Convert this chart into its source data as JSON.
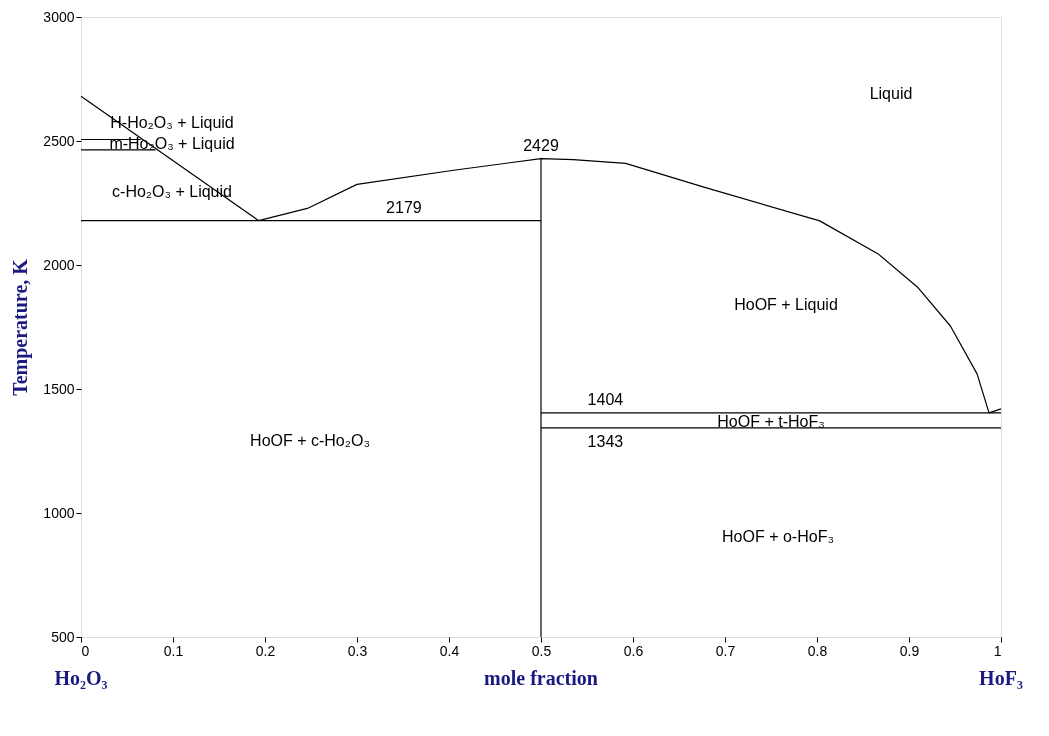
{
  "chart_data": {
    "type": "line",
    "xlabel": "mole fraction",
    "ylabel": "Temperature, K",
    "xlim": [
      0,
      1
    ],
    "ylim": [
      500,
      3000
    ],
    "xticks": [
      0,
      0.1,
      0.2,
      0.3,
      0.4,
      0.5,
      0.6,
      0.7,
      0.8,
      0.9,
      1
    ],
    "yticks": [
      500,
      1000,
      1500,
      2000,
      2500,
      3000
    ],
    "grid": false,
    "marker": "none",
    "line_style": "solid",
    "series": [
      {
        "color": "#000000",
        "x": [
          0,
          0.193
        ],
        "values": [
          2680,
          2179
        ]
      },
      {
        "color": "#000000",
        "x": [
          0,
          0.5
        ],
        "values": [
          2179,
          2179
        ]
      },
      {
        "color": "#000000",
        "x": [
          0,
          0.065
        ],
        "values": [
          2506,
          2506
        ]
      },
      {
        "color": "#000000",
        "x": [
          0,
          0.081
        ],
        "values": [
          2464,
          2464
        ]
      },
      {
        "color": "#000000",
        "x": [
          0.193,
          0.246,
          0.3,
          0.407,
          0.5,
          0.535,
          0.592,
          0.678,
          0.803,
          0.867,
          0.91,
          0.945,
          0.974,
          0.987
        ],
        "values": [
          2179,
          2228,
          2325,
          2383,
          2429,
          2425,
          2410,
          2313,
          2178,
          2043,
          1908,
          1754,
          1561,
          1404
        ]
      },
      {
        "color": "#000000",
        "x": [
          0.5,
          0.5
        ],
        "values": [
          500,
          2429
        ]
      },
      {
        "color": "#000000",
        "x": [
          0.5,
          1
        ],
        "values": [
          1404,
          1404
        ]
      },
      {
        "color": "#000000",
        "x": [
          0.5,
          1
        ],
        "values": [
          1343,
          1343
        ]
      },
      {
        "color": "#000000",
        "x": [
          0.987,
          1
        ],
        "values": [
          1404,
          1420
        ]
      }
    ],
    "annotations": [
      "Liquid",
      "H-Ho₂O₃ + Liquid",
      "m-Ho₂O₃ + Liquid",
      "c-Ho₂O₃ + Liquid",
      "HoOF + c-Ho₂O₃",
      "HoOF + Liquid",
      "HoOF + t-HoF₃",
      "HoOF + o-HoF₃",
      "Ho₂O₃",
      "HoF₃",
      {
        "text": "2429",
        "x": 0.5,
        "y": 2429
      },
      {
        "text": "2179",
        "x": 0.351,
        "y": 2179
      },
      {
        "text": "1404",
        "x": 0.57,
        "y": 1404
      },
      {
        "text": "1343",
        "x": 0.57,
        "y": 1343
      }
    ]
  }
}
